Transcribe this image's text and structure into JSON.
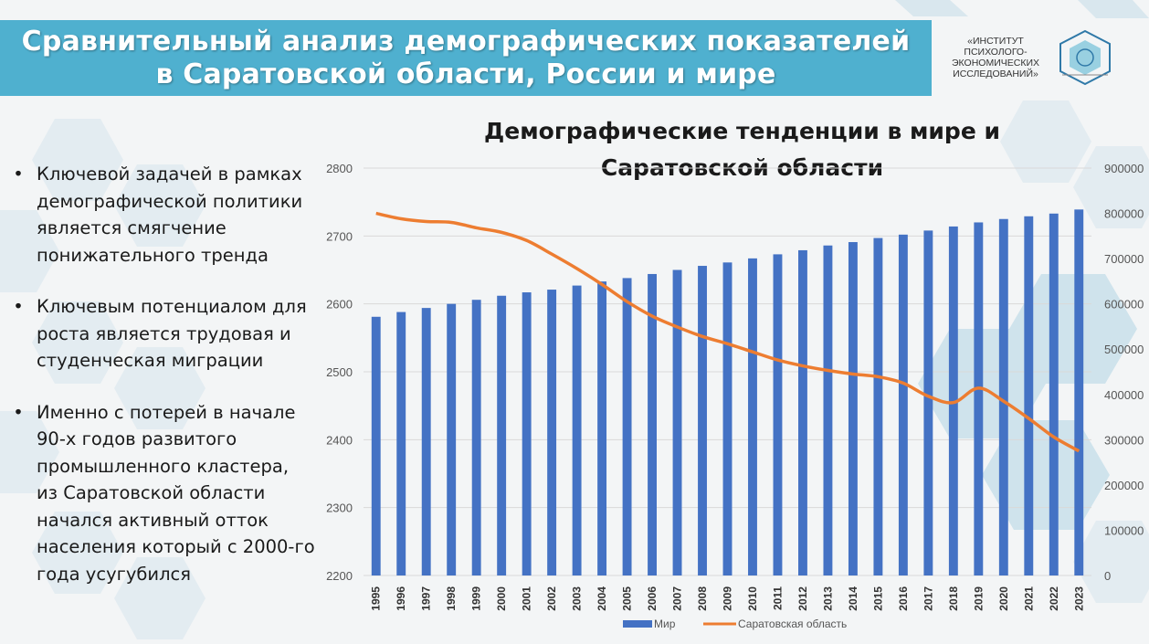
{
  "header": {
    "title_line1": "Сравнительный анализ демографических показателей",
    "title_line2": "в Саратовской области, России и мире"
  },
  "logo": {
    "lines": [
      "«ИНСТИТУТ",
      "ПСИХОЛОГО-",
      "ЭКОНОМИЧЕСКИХ",
      "ИССЛЕДОВАНИЙ»"
    ],
    "icon": "institute-emblem"
  },
  "bullets": [
    "Ключевой задачей в рамках демографической политики является смягчение понижательного тренда",
    "Ключевым потенциалом для роста является трудовая и студенческая миграции",
    "Именно с потерей в начале 90-х годов развитого промышленного кластера, из Саратовской области начался активный отток населения который с 2000-го года усугубился"
  ],
  "colors": {
    "title_bar": "#4fb0cf",
    "bar": "#4472c4",
    "line": "#ed7d31",
    "background": "#f3f5f6"
  },
  "chart_data": {
    "type": "bar",
    "title": "Демографические тенденции в мире и Саратовской области",
    "categories": [
      "1995",
      "1996",
      "1997",
      "1998",
      "1999",
      "2000",
      "2001",
      "2002",
      "2003",
      "2004",
      "2005",
      "2006",
      "2007",
      "2008",
      "2009",
      "2010",
      "2011",
      "2012",
      "2013",
      "2014",
      "2015",
      "2016",
      "2017",
      "2018",
      "2019",
      "2020",
      "2021",
      "2022",
      "2023"
    ],
    "series": [
      {
        "name": "Мир",
        "type": "bar",
        "axis": "left",
        "values": [
          2581,
          2588,
          2594,
          2600,
          2606,
          2612,
          2617,
          2621,
          2627,
          2633,
          2638,
          2644,
          2650,
          2656,
          2661,
          2667,
          2673,
          2679,
          2686,
          2691,
          2697,
          2702,
          2708,
          2714,
          2720,
          2725,
          2729,
          2733,
          2739
        ]
      },
      {
        "name": "Саратовская область",
        "type": "line",
        "axis": "right",
        "values": [
          800000,
          788000,
          782000,
          780000,
          768000,
          758000,
          740000,
          710000,
          678000,
          643000,
          605000,
          573000,
          549000,
          528000,
          512000,
          494000,
          476000,
          463000,
          453000,
          445000,
          439000,
          425000,
          396000,
          382000,
          414000,
          385000,
          347000,
          306000,
          275000
        ]
      }
    ],
    "y_left": {
      "min": 2200,
      "max": 2800,
      "ticks": [
        "2200",
        "2300",
        "2400",
        "2500",
        "2600",
        "2700",
        "2800"
      ]
    },
    "y_right": {
      "min": 0,
      "max": 900000,
      "ticks": [
        "0",
        "100000",
        "200000",
        "300000",
        "400000",
        "500000",
        "600000",
        "700000",
        "800000",
        "900000"
      ]
    },
    "grid": true,
    "legend": "bottom"
  }
}
